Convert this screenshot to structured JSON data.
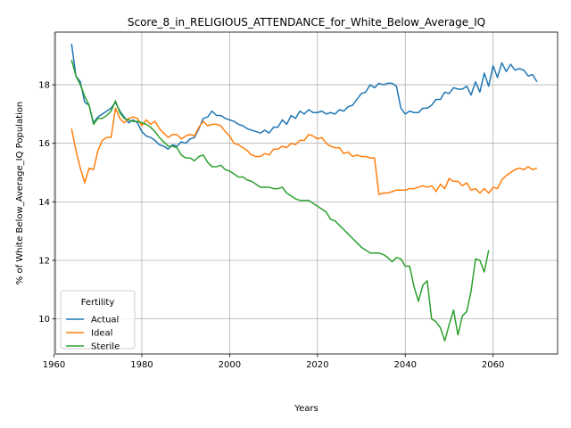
{
  "chart_data": {
    "type": "line",
    "title": "Score_8_in_RELIGIOUS_ATTENDANCE_for_White_Below_Average_IQ",
    "xlabel": "Years",
    "ylabel": "% of White Below_Average_IQ Population",
    "xlim": [
      1960.3,
      2074.7
    ],
    "ylim": [
      8.8,
      19.8
    ],
    "xticks": [
      1960,
      1980,
      2000,
      2020,
      2040,
      2060
    ],
    "yticks": [
      10,
      12,
      14,
      16,
      18
    ],
    "grid": true,
    "legend": {
      "title": "Fertility",
      "placement": "lower-left"
    },
    "series": [
      {
        "name": "Actual",
        "color": "#1f77b4",
        "points": [
          [
            1964,
            19.4
          ],
          [
            1965,
            18.3
          ],
          [
            1966,
            18.1
          ],
          [
            1967,
            17.4
          ],
          [
            1968,
            17.3
          ],
          [
            1969,
            16.7
          ],
          [
            1970,
            16.9
          ],
          [
            1971,
            17.0
          ],
          [
            1972,
            17.1
          ],
          [
            1973,
            17.2
          ],
          [
            1974,
            17.4
          ],
          [
            1975,
            17.1
          ],
          [
            1976,
            16.9
          ],
          [
            1977,
            16.7
          ],
          [
            1978,
            16.8
          ],
          [
            1979,
            16.7
          ],
          [
            1980,
            16.4
          ],
          [
            1981,
            16.25
          ],
          [
            1982,
            16.2
          ],
          [
            1983,
            16.1
          ],
          [
            1984,
            15.95
          ],
          [
            1985,
            15.9
          ],
          [
            1986,
            15.8
          ],
          [
            1987,
            15.95
          ],
          [
            1988,
            15.9
          ],
          [
            1989,
            16.05
          ],
          [
            1990,
            16.0
          ],
          [
            1991,
            16.15
          ],
          [
            1992,
            16.2
          ],
          [
            1993,
            16.5
          ],
          [
            1994,
            16.85
          ],
          [
            1995,
            16.9
          ],
          [
            1996,
            17.1
          ],
          [
            1997,
            16.95
          ],
          [
            1998,
            16.95
          ],
          [
            1999,
            16.85
          ],
          [
            2000,
            16.8
          ],
          [
            2001,
            16.75
          ],
          [
            2002,
            16.65
          ],
          [
            2003,
            16.6
          ],
          [
            2004,
            16.5
          ],
          [
            2005,
            16.45
          ],
          [
            2006,
            16.4
          ],
          [
            2007,
            16.35
          ],
          [
            2008,
            16.45
          ],
          [
            2009,
            16.35
          ],
          [
            2010,
            16.55
          ],
          [
            2011,
            16.55
          ],
          [
            2012,
            16.8
          ],
          [
            2013,
            16.65
          ],
          [
            2014,
            16.95
          ],
          [
            2015,
            16.85
          ],
          [
            2016,
            17.1
          ],
          [
            2017,
            17.0
          ],
          [
            2018,
            17.15
          ],
          [
            2019,
            17.05
          ],
          [
            2020,
            17.05
          ],
          [
            2021,
            17.1
          ],
          [
            2022,
            17.0
          ],
          [
            2023,
            17.05
          ],
          [
            2024,
            17.0
          ],
          [
            2025,
            17.15
          ],
          [
            2026,
            17.1
          ],
          [
            2027,
            17.25
          ],
          [
            2028,
            17.3
          ],
          [
            2029,
            17.5
          ],
          [
            2030,
            17.7
          ],
          [
            2031,
            17.75
          ],
          [
            2032,
            18.0
          ],
          [
            2033,
            17.9
          ],
          [
            2034,
            18.05
          ],
          [
            2035,
            18.0
          ],
          [
            2036,
            18.05
          ],
          [
            2037,
            18.05
          ],
          [
            2038,
            17.95
          ],
          [
            2039,
            17.2
          ],
          [
            2040,
            17.0
          ],
          [
            2041,
            17.1
          ],
          [
            2042,
            17.05
          ],
          [
            2043,
            17.05
          ],
          [
            2044,
            17.2
          ],
          [
            2045,
            17.2
          ],
          [
            2046,
            17.3
          ],
          [
            2047,
            17.5
          ],
          [
            2048,
            17.5
          ],
          [
            2049,
            17.75
          ],
          [
            2050,
            17.7
          ],
          [
            2051,
            17.9
          ],
          [
            2052,
            17.85
          ],
          [
            2053,
            17.85
          ],
          [
            2054,
            17.95
          ],
          [
            2055,
            17.65
          ],
          [
            2056,
            18.1
          ],
          [
            2057,
            17.75
          ],
          [
            2058,
            18.4
          ],
          [
            2059,
            17.95
          ],
          [
            2060,
            18.65
          ],
          [
            2061,
            18.25
          ],
          [
            2062,
            18.75
          ],
          [
            2063,
            18.45
          ],
          [
            2064,
            18.7
          ],
          [
            2065,
            18.5
          ],
          [
            2066,
            18.55
          ],
          [
            2067,
            18.5
          ],
          [
            2068,
            18.3
          ],
          [
            2069,
            18.35
          ],
          [
            2070,
            18.1
          ]
        ]
      },
      {
        "name": "Ideal",
        "color": "#ff7f0e",
        "points": [
          [
            1964,
            16.5
          ],
          [
            1965,
            15.75
          ],
          [
            1966,
            15.15
          ],
          [
            1967,
            14.65
          ],
          [
            1968,
            15.15
          ],
          [
            1969,
            15.1
          ],
          [
            1970,
            15.75
          ],
          [
            1971,
            16.1
          ],
          [
            1972,
            16.2
          ],
          [
            1973,
            16.2
          ],
          [
            1974,
            17.2
          ],
          [
            1975,
            16.85
          ],
          [
            1976,
            16.7
          ],
          [
            1977,
            16.85
          ],
          [
            1978,
            16.9
          ],
          [
            1979,
            16.85
          ],
          [
            1980,
            16.6
          ],
          [
            1981,
            16.8
          ],
          [
            1982,
            16.65
          ],
          [
            1983,
            16.75
          ],
          [
            1984,
            16.5
          ],
          [
            1985,
            16.35
          ],
          [
            1986,
            16.2
          ],
          [
            1987,
            16.3
          ],
          [
            1988,
            16.3
          ],
          [
            1989,
            16.15
          ],
          [
            1990,
            16.25
          ],
          [
            1991,
            16.3
          ],
          [
            1992,
            16.25
          ],
          [
            1993,
            16.55
          ],
          [
            1994,
            16.75
          ],
          [
            1995,
            16.6
          ],
          [
            1996,
            16.65
          ],
          [
            1997,
            16.65
          ],
          [
            1998,
            16.6
          ],
          [
            1999,
            16.4
          ],
          [
            2000,
            16.25
          ],
          [
            2001,
            16.0
          ],
          [
            2002,
            15.95
          ],
          [
            2003,
            15.85
          ],
          [
            2004,
            15.75
          ],
          [
            2005,
            15.6
          ],
          [
            2006,
            15.55
          ],
          [
            2007,
            15.55
          ],
          [
            2008,
            15.65
          ],
          [
            2009,
            15.6
          ],
          [
            2010,
            15.8
          ],
          [
            2011,
            15.8
          ],
          [
            2012,
            15.9
          ],
          [
            2013,
            15.85
          ],
          [
            2014,
            16.0
          ],
          [
            2015,
            15.95
          ],
          [
            2016,
            16.1
          ],
          [
            2017,
            16.1
          ],
          [
            2018,
            16.3
          ],
          [
            2019,
            16.25
          ],
          [
            2020,
            16.15
          ],
          [
            2021,
            16.2
          ],
          [
            2022,
            16.0
          ],
          [
            2023,
            15.9
          ],
          [
            2024,
            15.85
          ],
          [
            2025,
            15.85
          ],
          [
            2026,
            15.65
          ],
          [
            2027,
            15.7
          ],
          [
            2028,
            15.55
          ],
          [
            2029,
            15.6
          ],
          [
            2030,
            15.55
          ],
          [
            2031,
            15.55
          ],
          [
            2032,
            15.5
          ],
          [
            2033,
            15.5
          ],
          [
            2034,
            14.25
          ],
          [
            2035,
            14.3
          ],
          [
            2036,
            14.3
          ],
          [
            2037,
            14.35
          ],
          [
            2038,
            14.4
          ],
          [
            2039,
            14.4
          ],
          [
            2040,
            14.4
          ],
          [
            2041,
            14.45
          ],
          [
            2042,
            14.45
          ],
          [
            2043,
            14.5
          ],
          [
            2044,
            14.55
          ],
          [
            2045,
            14.5
          ],
          [
            2046,
            14.55
          ],
          [
            2047,
            14.35
          ],
          [
            2048,
            14.6
          ],
          [
            2049,
            14.45
          ],
          [
            2050,
            14.8
          ],
          [
            2051,
            14.7
          ],
          [
            2052,
            14.7
          ],
          [
            2053,
            14.55
          ],
          [
            2054,
            14.65
          ],
          [
            2055,
            14.4
          ],
          [
            2056,
            14.45
          ],
          [
            2057,
            14.3
          ],
          [
            2058,
            14.45
          ],
          [
            2059,
            14.3
          ],
          [
            2060,
            14.5
          ],
          [
            2061,
            14.45
          ],
          [
            2062,
            14.75
          ],
          [
            2063,
            14.9
          ],
          [
            2064,
            15.0
          ],
          [
            2065,
            15.1
          ],
          [
            2066,
            15.15
          ],
          [
            2067,
            15.1
          ],
          [
            2068,
            15.2
          ],
          [
            2069,
            15.1
          ],
          [
            2070,
            15.15
          ]
        ]
      },
      {
        "name": "Sterile",
        "color": "#2ca02c",
        "points": [
          [
            1964,
            18.85
          ],
          [
            1965,
            18.3
          ],
          [
            1966,
            18.0
          ],
          [
            1967,
            17.6
          ],
          [
            1968,
            17.3
          ],
          [
            1969,
            16.65
          ],
          [
            1970,
            16.85
          ],
          [
            1971,
            16.85
          ],
          [
            1972,
            16.95
          ],
          [
            1973,
            17.1
          ],
          [
            1974,
            17.45
          ],
          [
            1975,
            17.05
          ],
          [
            1976,
            16.85
          ],
          [
            1977,
            16.8
          ],
          [
            1978,
            16.75
          ],
          [
            1979,
            16.75
          ],
          [
            1980,
            16.7
          ],
          [
            1981,
            16.65
          ],
          [
            1982,
            16.55
          ],
          [
            1983,
            16.4
          ],
          [
            1984,
            16.2
          ],
          [
            1985,
            16.05
          ],
          [
            1986,
            15.9
          ],
          [
            1987,
            15.9
          ],
          [
            1988,
            15.85
          ],
          [
            1989,
            15.6
          ],
          [
            1990,
            15.5
          ],
          [
            1991,
            15.5
          ],
          [
            1992,
            15.4
          ],
          [
            1993,
            15.55
          ],
          [
            1994,
            15.6
          ],
          [
            1995,
            15.35
          ],
          [
            1996,
            15.2
          ],
          [
            1997,
            15.2
          ],
          [
            1998,
            15.25
          ],
          [
            1999,
            15.1
          ],
          [
            2000,
            15.05
          ],
          [
            2001,
            14.95
          ],
          [
            2002,
            14.85
          ],
          [
            2003,
            14.85
          ],
          [
            2004,
            14.75
          ],
          [
            2005,
            14.7
          ],
          [
            2006,
            14.6
          ],
          [
            2007,
            14.5
          ],
          [
            2008,
            14.5
          ],
          [
            2009,
            14.5
          ],
          [
            2010,
            14.45
          ],
          [
            2011,
            14.45
          ],
          [
            2012,
            14.5
          ],
          [
            2013,
            14.3
          ],
          [
            2014,
            14.2
          ],
          [
            2015,
            14.1
          ],
          [
            2016,
            14.05
          ],
          [
            2017,
            14.05
          ],
          [
            2018,
            14.05
          ],
          [
            2019,
            13.95
          ],
          [
            2020,
            13.85
          ],
          [
            2021,
            13.75
          ],
          [
            2022,
            13.65
          ],
          [
            2023,
            13.4
          ],
          [
            2024,
            13.35
          ],
          [
            2025,
            13.2
          ],
          [
            2026,
            13.05
          ],
          [
            2027,
            12.9
          ],
          [
            2028,
            12.75
          ],
          [
            2029,
            12.6
          ],
          [
            2030,
            12.45
          ],
          [
            2031,
            12.35
          ],
          [
            2032,
            12.25
          ],
          [
            2033,
            12.25
          ],
          [
            2034,
            12.25
          ],
          [
            2035,
            12.2
          ],
          [
            2036,
            12.1
          ],
          [
            2037,
            11.95
          ],
          [
            2038,
            12.1
          ],
          [
            2039,
            12.05
          ],
          [
            2040,
            11.8
          ],
          [
            2041,
            11.8
          ],
          [
            2042,
            11.1
          ],
          [
            2043,
            10.6
          ],
          [
            2044,
            11.15
          ],
          [
            2045,
            11.3
          ],
          [
            2046,
            10.0
          ],
          [
            2047,
            9.9
          ],
          [
            2048,
            9.7
          ],
          [
            2049,
            9.25
          ],
          [
            2050,
            9.8
          ],
          [
            2051,
            10.3
          ],
          [
            2052,
            9.45
          ],
          [
            2053,
            10.1
          ],
          [
            2054,
            10.25
          ],
          [
            2055,
            10.95
          ],
          [
            2056,
            12.05
          ],
          [
            2057,
            12.0
          ],
          [
            2058,
            11.6
          ],
          [
            2059,
            12.35
          ]
        ]
      }
    ]
  }
}
